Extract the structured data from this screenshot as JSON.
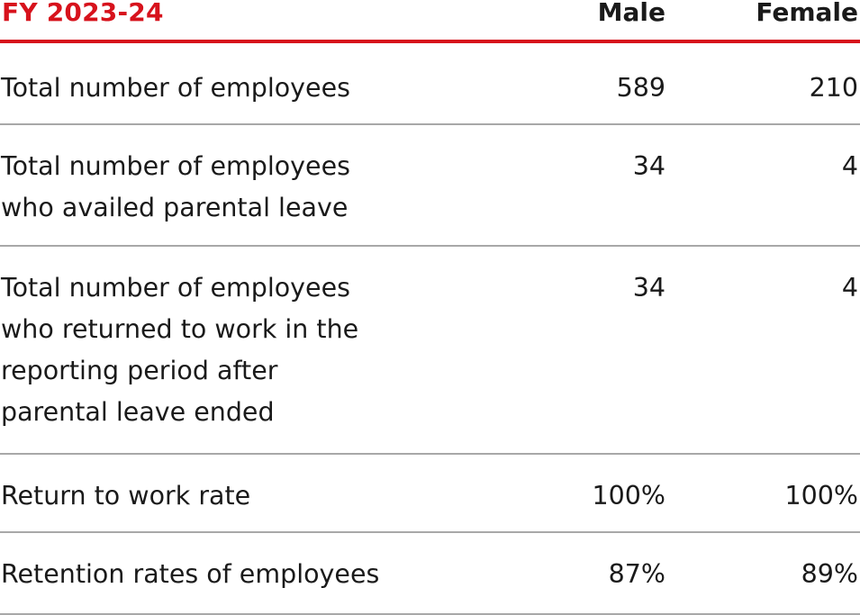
{
  "header": {
    "title": "FY 2023-24",
    "col_male": "Male",
    "col_female": "Female"
  },
  "colors": {
    "accent": "#d7121c",
    "text": "#1a1a1a",
    "divider": "#a8a8a8"
  },
  "rows": [
    {
      "label": "Total number of employees",
      "male": "589",
      "female": "210"
    },
    {
      "label": "Total number of employees\nwho availed parental leave",
      "male": "34",
      "female": "4"
    },
    {
      "label": "Total number of employees\nwho returned to work in the\nreporting period after\nparental leave ended",
      "male": "34",
      "female": "4"
    },
    {
      "label": "Return to work rate",
      "male": "100%",
      "female": "100%"
    },
    {
      "label": "Retention rates of employees",
      "male": "87%",
      "female": "89%"
    }
  ]
}
